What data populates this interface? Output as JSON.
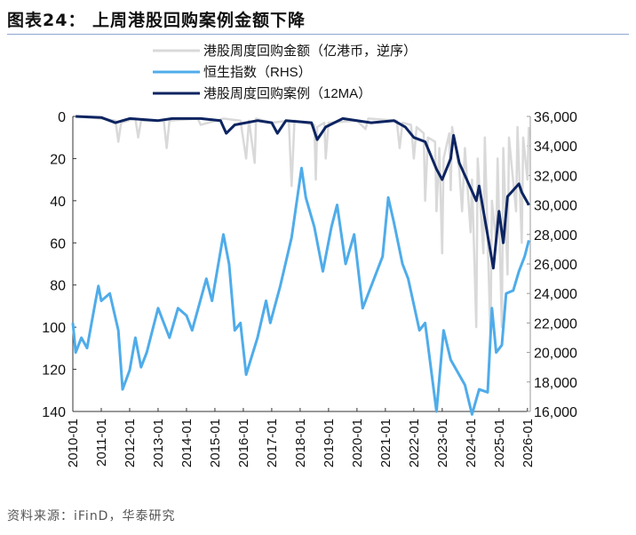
{
  "title": "图表24：  上周港股回购案例金额下降",
  "source": "资料来源：iFinD，华泰研究",
  "chart_data": {
    "type": "line",
    "title": "上周港股回购案例金额下降",
    "legend_position": "top-center",
    "left_axis": {
      "range": [
        0,
        140
      ],
      "inverted": true,
      "ticks": [
        "0",
        "20",
        "40",
        "60",
        "80",
        "100",
        "120",
        "140"
      ]
    },
    "right_axis": {
      "range": [
        16000,
        36000
      ],
      "ticks": [
        "16,000",
        "18,000",
        "20,000",
        "22,000",
        "24,000",
        "26,000",
        "28,000",
        "30,000",
        "32,000",
        "34,000",
        "36,000"
      ]
    },
    "x_range": [
      2010,
      2026.1
    ],
    "x_ticks": [
      "2010-01",
      "2011-01",
      "2012-01",
      "2013-01",
      "2014-01",
      "2015-01",
      "2016-01",
      "2017-01",
      "2018-01",
      "2019-01",
      "2020-01",
      "2021-01",
      "2022-01",
      "2023-01",
      "2024-01",
      "2025-01",
      "2026-01"
    ],
    "series": [
      {
        "name": "港股周度回购金额（亿港币，逆序）",
        "axis": "left",
        "color": "#d9d9d9",
        "points": [
          [
            2010.1,
            0
          ],
          [
            2011.0,
            1
          ],
          [
            2011.5,
            2
          ],
          [
            2011.6,
            12
          ],
          [
            2011.7,
            3
          ],
          [
            2012.2,
            1
          ],
          [
            2012.3,
            10
          ],
          [
            2012.4,
            2
          ],
          [
            2013.2,
            2
          ],
          [
            2013.3,
            15
          ],
          [
            2013.4,
            2
          ],
          [
            2014.4,
            1
          ],
          [
            2014.5,
            4
          ],
          [
            2015.3,
            1
          ],
          [
            2015.9,
            2
          ],
          [
            2016.1,
            20
          ],
          [
            2016.2,
            2
          ],
          [
            2016.4,
            22
          ],
          [
            2016.45,
            1
          ],
          [
            2017.0,
            3
          ],
          [
            2017.6,
            2
          ],
          [
            2017.7,
            33
          ],
          [
            2017.8,
            2
          ],
          [
            2018.5,
            4
          ],
          [
            2018.55,
            30
          ],
          [
            2018.6,
            5
          ],
          [
            2018.85,
            3
          ],
          [
            2018.9,
            20
          ],
          [
            2019.0,
            3
          ],
          [
            2020.0,
            2
          ],
          [
            2020.3,
            6
          ],
          [
            2020.4,
            1
          ],
          [
            2021.4,
            2
          ],
          [
            2021.5,
            15
          ],
          [
            2021.6,
            3
          ],
          [
            2021.9,
            4
          ],
          [
            2022.0,
            20
          ],
          [
            2022.1,
            5
          ],
          [
            2022.35,
            8
          ],
          [
            2022.4,
            40
          ],
          [
            2022.5,
            10
          ],
          [
            2022.75,
            12
          ],
          [
            2022.8,
            45
          ],
          [
            2022.9,
            15
          ],
          [
            2023.0,
            65
          ],
          [
            2023.05,
            20
          ],
          [
            2023.25,
            8
          ],
          [
            2023.3,
            35
          ],
          [
            2023.35,
            5
          ],
          [
            2023.6,
            25
          ],
          [
            2023.7,
            45
          ],
          [
            2023.8,
            15
          ],
          [
            2024.0,
            55
          ],
          [
            2024.05,
            30
          ],
          [
            2024.2,
            100
          ],
          [
            2024.25,
            20
          ],
          [
            2024.45,
            65
          ],
          [
            2024.5,
            10
          ],
          [
            2024.7,
            105
          ],
          [
            2024.75,
            40
          ],
          [
            2024.9,
            60
          ],
          [
            2024.95,
            20
          ],
          [
            2025.1,
            100
          ],
          [
            2025.15,
            15
          ],
          [
            2025.3,
            75
          ],
          [
            2025.35,
            10
          ],
          [
            2025.6,
            45
          ],
          [
            2025.65,
            5
          ],
          [
            2025.8,
            60
          ],
          [
            2025.85,
            10
          ],
          [
            2026.0,
            30
          ],
          [
            2026.05,
            5
          ]
        ]
      },
      {
        "name": "恒生指数（RHS）",
        "axis": "right",
        "color": "#4facea",
        "points": [
          [
            2010.0,
            22000
          ],
          [
            2010.1,
            20000
          ],
          [
            2010.3,
            21000
          ],
          [
            2010.5,
            20300
          ],
          [
            2010.8,
            23500
          ],
          [
            2010.9,
            24500
          ],
          [
            2011.0,
            23500
          ],
          [
            2011.3,
            24000
          ],
          [
            2011.6,
            21500
          ],
          [
            2011.75,
            17500
          ],
          [
            2012.0,
            18800
          ],
          [
            2012.2,
            21000
          ],
          [
            2012.4,
            19000
          ],
          [
            2012.6,
            20000
          ],
          [
            2013.0,
            23000
          ],
          [
            2013.4,
            21000
          ],
          [
            2013.7,
            23000
          ],
          [
            2014.0,
            22500
          ],
          [
            2014.2,
            21500
          ],
          [
            2014.7,
            25000
          ],
          [
            2014.9,
            23500
          ],
          [
            2015.3,
            28000
          ],
          [
            2015.5,
            26000
          ],
          [
            2015.7,
            21500
          ],
          [
            2015.9,
            22000
          ],
          [
            2016.1,
            18500
          ],
          [
            2016.5,
            21000
          ],
          [
            2016.8,
            23500
          ],
          [
            2016.95,
            22000
          ],
          [
            2017.3,
            24500
          ],
          [
            2017.7,
            27800
          ],
          [
            2018.05,
            32500
          ],
          [
            2018.2,
            30500
          ],
          [
            2018.5,
            28500
          ],
          [
            2018.8,
            25500
          ],
          [
            2019.1,
            28500
          ],
          [
            2019.3,
            30000
          ],
          [
            2019.6,
            26000
          ],
          [
            2019.9,
            28000
          ],
          [
            2020.2,
            23000
          ],
          [
            2020.5,
            24500
          ],
          [
            2020.9,
            26500
          ],
          [
            2021.1,
            30500
          ],
          [
            2021.3,
            28800
          ],
          [
            2021.6,
            26000
          ],
          [
            2021.8,
            25000
          ],
          [
            2022.2,
            21500
          ],
          [
            2022.4,
            22000
          ],
          [
            2022.8,
            16000
          ],
          [
            2023.05,
            21500
          ],
          [
            2023.3,
            19500
          ],
          [
            2023.8,
            17800
          ],
          [
            2024.05,
            15800
          ],
          [
            2024.3,
            17500
          ],
          [
            2024.6,
            17300
          ],
          [
            2024.75,
            23000
          ],
          [
            2024.9,
            20000
          ],
          [
            2025.1,
            20500
          ],
          [
            2025.25,
            24000
          ],
          [
            2025.5,
            24200
          ],
          [
            2025.7,
            25500
          ],
          [
            2025.9,
            26500
          ],
          [
            2026.05,
            27600
          ]
        ]
      },
      {
        "name": "港股周度回购案例（12MA）",
        "axis": "left",
        "color": "#0c2461",
        "points": [
          [
            2010.1,
            0
          ],
          [
            2011.0,
            0.5
          ],
          [
            2011.5,
            3
          ],
          [
            2012.0,
            1
          ],
          [
            2013.0,
            2
          ],
          [
            2013.5,
            1
          ],
          [
            2014.5,
            1
          ],
          [
            2015.2,
            2
          ],
          [
            2015.4,
            8
          ],
          [
            2015.7,
            4
          ],
          [
            2016.5,
            2
          ],
          [
            2017.0,
            3
          ],
          [
            2017.2,
            8
          ],
          [
            2017.5,
            2
          ],
          [
            2018.4,
            3
          ],
          [
            2018.6,
            11
          ],
          [
            2018.9,
            5
          ],
          [
            2019.5,
            1
          ],
          [
            2020.5,
            3
          ],
          [
            2021.3,
            2
          ],
          [
            2021.7,
            5
          ],
          [
            2022.0,
            10
          ],
          [
            2022.4,
            12
          ],
          [
            2022.8,
            25
          ],
          [
            2023.0,
            30
          ],
          [
            2023.3,
            20
          ],
          [
            2023.4,
            9
          ],
          [
            2023.6,
            22
          ],
          [
            2023.8,
            28
          ],
          [
            2024.2,
            40
          ],
          [
            2024.3,
            33
          ],
          [
            2024.8,
            72
          ],
          [
            2025.0,
            45
          ],
          [
            2025.15,
            60
          ],
          [
            2025.3,
            38
          ],
          [
            2025.5,
            35
          ],
          [
            2025.7,
            32
          ],
          [
            2025.8,
            36
          ],
          [
            2026.05,
            42
          ]
        ]
      }
    ]
  }
}
